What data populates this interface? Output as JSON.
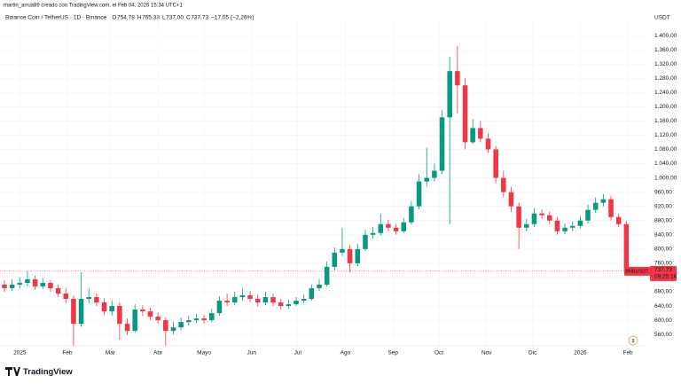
{
  "header": {
    "credit": "martin_arrua89 creado con TradingView.com, el Feb 04, 2026 15:34 UTC+1",
    "symbol": "Binance Coin / TetherUS · 1D · Binance",
    "ohlc": [
      {
        "key": "O",
        "value": "754,78"
      },
      {
        "key": "H",
        "value": "765,33"
      },
      {
        "key": "L",
        "value": "737,00"
      },
      {
        "key": "C",
        "value": "737,73"
      }
    ],
    "change": "−17,05 (−2,26%)"
  },
  "footer": {
    "logo": "TradingView"
  },
  "chart_data": {
    "type": "candlestick",
    "currency": "USDT",
    "up_color": "#089981",
    "down_color": "#f23645",
    "grid": true,
    "symbol_tag": "BNBUSDT",
    "last_price_label": "737,73",
    "countdown": "09:25:18",
    "open": [
      690,
      700,
      690,
      700,
      705,
      715,
      695,
      705,
      690,
      675,
      660,
      590,
      660,
      665,
      650,
      625,
      640,
      590,
      570,
      630,
      625,
      610,
      600,
      570,
      580,
      595,
      600,
      605,
      600,
      620,
      655,
      650,
      665,
      670,
      660,
      650,
      665,
      650,
      640,
      645,
      655,
      660,
      690,
      700,
      750,
      790,
      800,
      760,
      800,
      840,
      845,
      870,
      860,
      850,
      875,
      920,
      990,
      1000,
      1020,
      1170,
      1300,
      1260,
      1100,
      1140,
      1110,
      1080,
      1000,
      960,
      920,
      860,
      870,
      900,
      895,
      880,
      850,
      860,
      865,
      880,
      910,
      930,
      940,
      890,
      870
    ],
    "high": [
      718,
      712,
      715,
      720,
      738,
      725,
      718,
      712,
      700,
      690,
      670,
      735,
      690,
      675,
      662,
      655,
      650,
      605,
      645,
      642,
      635,
      622,
      608,
      595,
      608,
      612,
      618,
      615,
      632,
      668,
      675,
      680,
      690,
      682,
      672,
      680,
      675,
      660,
      658,
      665,
      672,
      700,
      715,
      765,
      805,
      860,
      812,
      815,
      855,
      862,
      900,
      882,
      870,
      888,
      935,
      1010,
      1085,
      1040,
      1190,
      1340,
      1370,
      1280,
      1165,
      1160,
      1125,
      1090,
      1020,
      975,
      930,
      885,
      915,
      912,
      905,
      890,
      872,
      878,
      892,
      925,
      945,
      955,
      950,
      900,
      880
    ],
    "low": [
      680,
      680,
      682,
      690,
      695,
      685,
      688,
      680,
      665,
      648,
      510,
      582,
      648,
      640,
      615,
      612,
      545,
      558,
      565,
      612,
      600,
      590,
      525,
      560,
      572,
      585,
      592,
      590,
      595,
      612,
      640,
      642,
      655,
      650,
      638,
      642,
      640,
      630,
      632,
      640,
      648,
      655,
      682,
      695,
      740,
      780,
      735,
      752,
      795,
      830,
      838,
      850,
      840,
      845,
      868,
      912,
      975,
      990,
      1010,
      870,
      1180,
      1080,
      1095,
      1100,
      1070,
      985,
      945,
      905,
      800,
      850,
      862,
      885,
      870,
      840,
      842,
      850,
      858,
      872,
      902,
      920,
      880,
      862,
      730
    ],
    "close": [
      700,
      690,
      700,
      705,
      715,
      695,
      705,
      690,
      675,
      660,
      590,
      660,
      665,
      650,
      625,
      640,
      590,
      570,
      630,
      625,
      610,
      600,
      570,
      580,
      595,
      600,
      605,
      600,
      620,
      655,
      650,
      665,
      670,
      660,
      650,
      665,
      650,
      640,
      645,
      655,
      660,
      690,
      700,
      750,
      790,
      800,
      760,
      800,
      840,
      845,
      870,
      860,
      850,
      875,
      920,
      990,
      1000,
      1020,
      1170,
      1300,
      1260,
      1100,
      1140,
      1110,
      1080,
      1000,
      960,
      920,
      860,
      870,
      900,
      895,
      880,
      850,
      860,
      865,
      880,
      910,
      930,
      940,
      890,
      870,
      737.73
    ],
    "xlim": [
      -0.5,
      84.5
    ],
    "xticks": [
      {
        "value": 3,
        "label": "2025"
      },
      {
        "value": 9.2,
        "label": "Feb"
      },
      {
        "value": 14.8,
        "label": "Mar"
      },
      {
        "value": 21,
        "label": "Abr"
      },
      {
        "value": 27,
        "label": "Mayo"
      },
      {
        "value": 33.2,
        "label": "Jun"
      },
      {
        "value": 39.2,
        "label": "Jul"
      },
      {
        "value": 45.4,
        "label": "Ago"
      },
      {
        "value": 51.6,
        "label": "Sep"
      },
      {
        "value": 57.6,
        "label": "Oct"
      },
      {
        "value": 63.8,
        "label": "Nov"
      },
      {
        "value": 69.8,
        "label": "Dic"
      },
      {
        "value": 76,
        "label": "2026"
      },
      {
        "value": 82.2,
        "label": "Feb"
      }
    ],
    "ylim": [
      528,
      1430
    ],
    "yticks": [
      {
        "value": 560,
        "label": "560,00"
      },
      {
        "value": 600,
        "label": "600,00"
      },
      {
        "value": 640,
        "label": "640,00"
      },
      {
        "value": 680,
        "label": "680,00"
      },
      {
        "value": 720,
        "label": "720,00"
      },
      {
        "value": 760,
        "label": "760,00"
      },
      {
        "value": 800,
        "label": "800,00"
      },
      {
        "value": 840,
        "label": "840,00"
      },
      {
        "value": 880,
        "label": "880,00"
      },
      {
        "value": 920,
        "label": "920,00"
      },
      {
        "value": 960,
        "label": "960,00"
      },
      {
        "value": 1000,
        "label": "1.000,00"
      },
      {
        "value": 1040,
        "label": "1.040,00"
      },
      {
        "value": 1080,
        "label": "1.080,00"
      },
      {
        "value": 1120,
        "label": "1.120,00"
      },
      {
        "value": 1160,
        "label": "1.160,00"
      },
      {
        "value": 1200,
        "label": "1.200,00"
      },
      {
        "value": 1240,
        "label": "1.240,00"
      },
      {
        "value": 1280,
        "label": "1.280,00"
      },
      {
        "value": 1320,
        "label": "1.320,00"
      },
      {
        "value": 1360,
        "label": "1.360,00"
      },
      {
        "value": 1400,
        "label": "1.400,00"
      }
    ]
  }
}
